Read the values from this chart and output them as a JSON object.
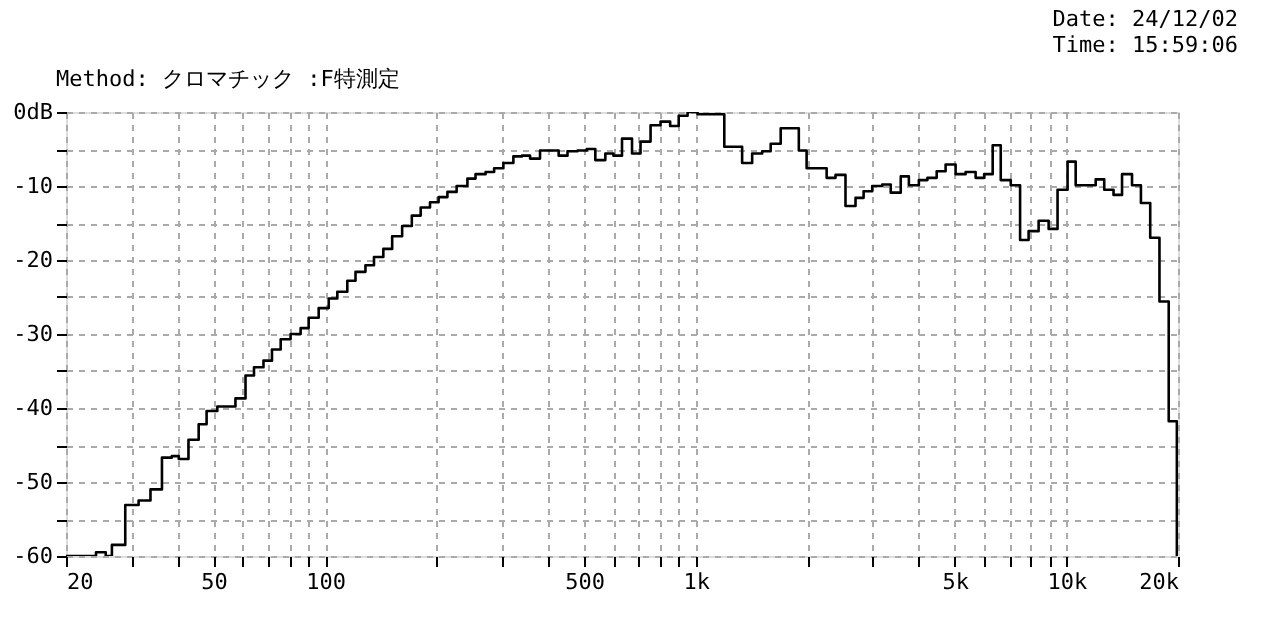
{
  "chart_data": {
    "type": "step",
    "title": "Method: クロマチック :F特測定",
    "annotations": [
      "Date: 24/12/02",
      "Time: 15:59:06"
    ],
    "x": [
      20,
      24.1,
      25.6,
      26.6,
      28.9,
      31.4,
      33.8,
      36.3,
      38.6,
      40.3,
      42.8,
      45.6,
      47.9,
      51.2,
      57.3,
      61,
      64.3,
      68.2,
      71.9,
      75.9,
      80.7,
      85.9,
      90.3,
      96.1,
      102.3,
      107.9,
      114.8,
      120.8,
      128.5,
      135.5,
      143.6,
      151.7,
      161.4,
      171.4,
      181.1,
      191.9,
      202.4,
      213.8,
      226.4,
      242.1,
      254.6,
      271,
      285.8,
      302.7,
      322.1,
      339.8,
      357.3,
      380.1,
      426.7,
      450.8,
      479.8,
      508.2,
      535.9,
      570.3,
      599.7,
      632.5,
      673.1,
      709.6,
      755.3,
      803.7,
      853,
      899.5,
      950.6,
      1011.5,
      1193.9,
      1333.9,
      1419.6,
      1510.9,
      1592.8,
      1695,
      1897,
      1991,
      2255,
      2383,
      2535,
      2698,
      2837,
      2993,
      3184,
      3358,
      3573,
      3758,
      3999,
      4217,
      4467,
      4721,
      5024,
      5346,
      5689,
      5999,
      6325,
      6650,
      7077,
      7499,
      7907,
      8414,
      8954,
      9464,
      10072,
      10592,
      11995,
      12648,
      13400,
      14127,
      15031,
      15886,
      16830,
      17825,
      18880,
      19860,
      20000
    ],
    "series": [
      {
        "color": "#000000",
        "values": [
          -60,
          -59.5,
          -60,
          -58.5,
          -53.1,
          -52.5,
          -51,
          -46.7,
          -46.5,
          -46.9,
          -44.3,
          -42.2,
          -40.4,
          -39.8,
          -38.7,
          -35.6,
          -34.5,
          -33.6,
          -32.1,
          -30.7,
          -30,
          -29.2,
          -27.8,
          -26.5,
          -25.2,
          -24.3,
          -22.8,
          -21.6,
          -20.7,
          -19.6,
          -18.5,
          -16.8,
          -15.4,
          -14,
          -12.9,
          -12.2,
          -11.5,
          -10.8,
          -10,
          -9,
          -8.4,
          -8.1,
          -7.6,
          -6.9,
          -6,
          -5.9,
          -6.3,
          -5.2,
          -5.9,
          -5.3,
          -5.2,
          -5,
          -6.5,
          -5.6,
          -5.9,
          -3.6,
          -5.6,
          -4,
          -1.8,
          -1.3,
          -1.9,
          -0.5,
          0,
          -0.3,
          -4.7,
          -6.9,
          -5.6,
          -5.3,
          -4.3,
          -2.2,
          -5.2,
          -7.6,
          -8.9,
          -8.5,
          -12.7,
          -11.6,
          -10.7,
          -10,
          -9.8,
          -10.9,
          -8.7,
          -9.9,
          -9.2,
          -8.9,
          -8,
          -7.1,
          -8.4,
          -8.1,
          -8.9,
          -8.4,
          -4.5,
          -9.2,
          -9.9,
          -17.3,
          -16.1,
          -14.7,
          -15.8,
          -10.5,
          -6.7,
          -9.9,
          -9.1,
          -10.5,
          -11.2,
          -8.4,
          -9.9,
          -12.3,
          -17,
          -25.6,
          -41.8,
          -60,
          -60
        ]
      }
    ],
    "log": "x",
    "xlim": [
      20,
      20000
    ],
    "ylim": [
      -60,
      0
    ],
    "xticks": [
      20,
      {
        "value": 30,
        "label": null
      },
      {
        "value": 40,
        "label": null
      },
      50,
      {
        "value": 60,
        "label": null
      },
      {
        "value": 70,
        "label": null
      },
      {
        "value": 80,
        "label": null
      },
      {
        "value": 90,
        "label": null
      },
      100,
      {
        "value": 200,
        "label": null
      },
      {
        "value": 300,
        "label": null
      },
      {
        "value": 400,
        "label": null
      },
      500,
      {
        "value": 600,
        "label": null
      },
      {
        "value": 700,
        "label": null
      },
      {
        "value": 800,
        "label": null
      },
      {
        "value": 900,
        "label": null
      },
      {
        "value": 1000,
        "label": "1k"
      },
      {
        "value": 2000,
        "label": null
      },
      {
        "value": 3000,
        "label": null
      },
      {
        "value": 4000,
        "label": null
      },
      {
        "value": 5000,
        "label": "5k"
      },
      {
        "value": 6000,
        "label": null
      },
      {
        "value": 7000,
        "label": null
      },
      {
        "value": 8000,
        "label": null
      },
      {
        "value": 9000,
        "label": null
      },
      {
        "value": 10000,
        "label": "10k"
      },
      {
        "value": 20000,
        "label": "20k"
      }
    ],
    "yticks": [
      {
        "value": 0,
        "label": "0dB"
      },
      {
        "value": -5,
        "label": null
      },
      -10,
      {
        "value": -15,
        "label": null
      },
      -20,
      {
        "value": -25,
        "label": null
      },
      -30,
      {
        "value": -35,
        "label": null
      },
      -40,
      {
        "value": -45,
        "label": null
      },
      -50,
      {
        "value": -55,
        "label": null
      },
      -60
    ],
    "grid": true,
    "line_style": "solid",
    "marker": "none"
  }
}
